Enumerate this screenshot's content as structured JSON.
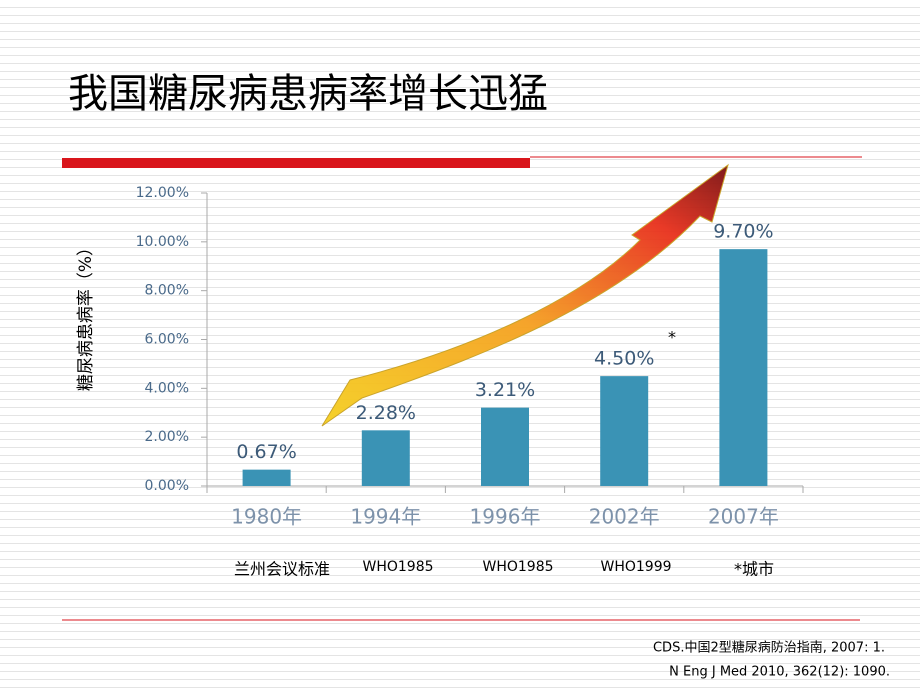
{
  "chart_data": {
    "type": "bar",
    "title": "我国糖尿病患病率增长迅猛",
    "y_label": "糖尿病患病率（%）",
    "categories": [
      "1980年",
      "1994年",
      "1996年",
      "2002年",
      "2007年"
    ],
    "values": [
      0.67,
      2.28,
      3.21,
      4.5,
      9.7
    ],
    "value_labels": [
      "0.67%",
      "2.28%",
      "3.21%",
      "4.50%",
      "9.70%"
    ],
    "color": "#3a93b5",
    "ylim": [
      0,
      12
    ],
    "yticks": [
      {
        "value": 0,
        "label": "0.00%"
      },
      {
        "value": 2,
        "label": "2.00%"
      },
      {
        "value": 4,
        "label": "4.00%"
      },
      {
        "value": 6,
        "label": "6.00%"
      },
      {
        "value": 8,
        "label": "8.00%"
      },
      {
        "value": 10,
        "label": "10.00%"
      },
      {
        "value": 12,
        "label": "12.00%"
      }
    ],
    "criteria": [
      "兰州会议标准",
      "WHO1985",
      "WHO1985",
      "WHO1999",
      "*城市"
    ],
    "marker": "*",
    "sources": [
      "CDS.中国2型糖尿病防治指南, 2007: 1.",
      "N Eng J Med 2010, 362(12): 1090."
    ]
  }
}
